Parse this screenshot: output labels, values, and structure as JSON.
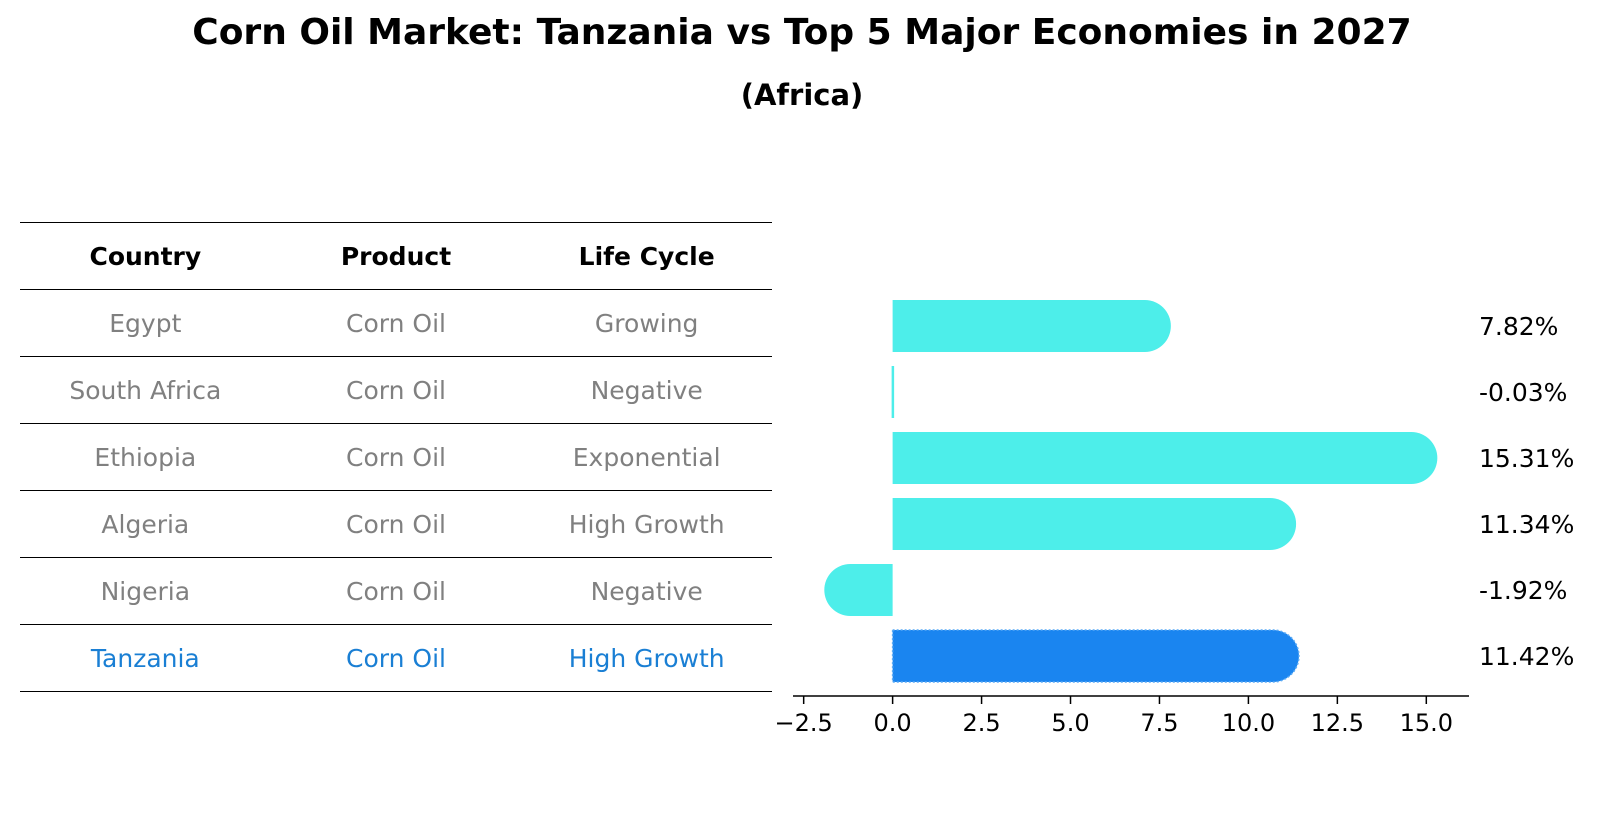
{
  "title": "Corn Oil Market: Tanzania vs Top 5 Major Economies in 2027",
  "subtitle": "(Africa)",
  "table": {
    "headers": [
      "Country",
      "Product",
      "Life Cycle"
    ],
    "rows": [
      {
        "country": "Egypt",
        "product": "Corn Oil",
        "life_cycle": "Growing"
      },
      {
        "country": "South Africa",
        "product": "Corn Oil",
        "life_cycle": "Negative"
      },
      {
        "country": "Ethiopia",
        "product": "Corn Oil",
        "life_cycle": "Exponential"
      },
      {
        "country": "Algeria",
        "product": "Corn Oil",
        "life_cycle": "High Growth"
      },
      {
        "country": "Nigeria",
        "product": "Corn Oil",
        "life_cycle": "Negative"
      },
      {
        "country": "Tanzania",
        "product": "Corn Oil",
        "life_cycle": "High Growth"
      }
    ]
  },
  "colors": {
    "bar": "#4deeea",
    "highlight_bar": "#1a85f0",
    "highlight_text": "#1a7fd4",
    "row_text": "#808080"
  },
  "chart_data": {
    "type": "bar",
    "orientation": "horizontal",
    "categories": [
      "Egypt",
      "South Africa",
      "Ethiopia",
      "Algeria",
      "Nigeria",
      "Tanzania"
    ],
    "values": [
      7.82,
      -0.03,
      15.31,
      11.34,
      -1.92,
      11.42
    ],
    "value_labels": [
      "7.82%",
      "-0.03%",
      "15.31%",
      "11.34%",
      "-1.92%",
      "11.42%"
    ],
    "highlight": "Tanzania",
    "xlim": [
      -2.8,
      16.2
    ],
    "xticks": [
      -2.5,
      0.0,
      2.5,
      5.0,
      7.5,
      10.0,
      12.5,
      15.0
    ],
    "xtick_labels": [
      "−2.5",
      "0.0",
      "2.5",
      "5.0",
      "7.5",
      "10.0",
      "12.5",
      "15.0"
    ]
  }
}
